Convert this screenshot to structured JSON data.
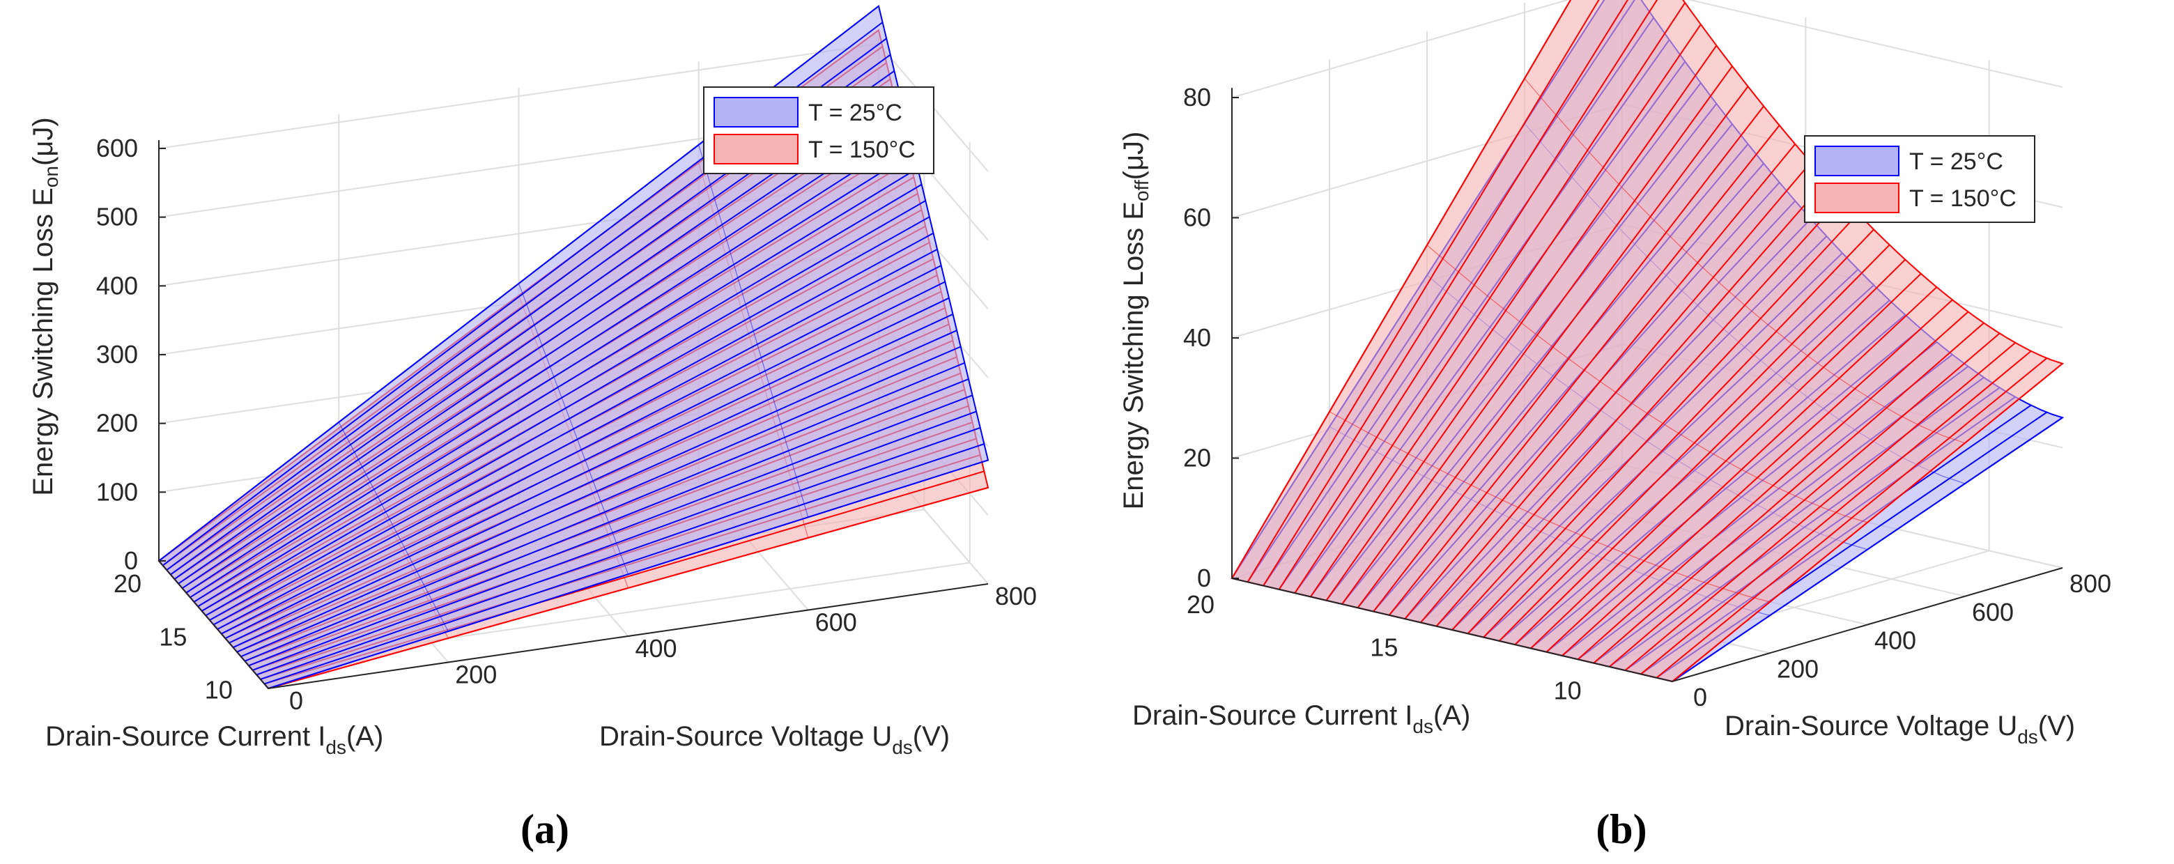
{
  "figure": {
    "panel_a_caption": "(a)",
    "panel_b_caption": "(b)"
  },
  "colors": {
    "blue_edge": "#0000ff",
    "blue_face": "#b3b3f5",
    "red_edge": "#ff0000",
    "red_face": "#f5b3b3",
    "grid": "#dedede",
    "axis": "#262626"
  },
  "chart_data": [
    {
      "type": "surface",
      "panel": "a",
      "title": "",
      "zlabel_main": "Energy Switching Loss E",
      "zlabel_sub": "on",
      "zlabel_unit": "(μJ)",
      "xlabel_main": "Drain-Source Current I",
      "xlabel_sub": "ds",
      "xlabel_unit": "(A)",
      "ylabel_main": "Drain-Source Voltage U",
      "ylabel_sub": "ds",
      "ylabel_unit": "(V)",
      "current_range": [
        8,
        20
      ],
      "voltage_range": [
        0,
        800
      ],
      "zlim": [
        0,
        600
      ],
      "current_ticks": [
        10,
        15,
        20
      ],
      "voltage_ticks": [
        0,
        200,
        400,
        600,
        800
      ],
      "z_ticks": [
        0,
        100,
        200,
        300,
        400,
        500,
        600
      ],
      "legend": [
        "T = 25°C",
        "T = 150°C"
      ],
      "legend_position": "top-right",
      "series": [
        {
          "name": "T = 25°C",
          "color": "blue",
          "peak_value": 655,
          "corner_low_current_high_voltage": 180,
          "grid_lines": 28
        },
        {
          "name": "T = 150°C",
          "color": "red",
          "peak_value": 620,
          "corner_low_current_high_voltage": 140,
          "grid_lines": 28
        }
      ]
    },
    {
      "type": "surface",
      "panel": "b",
      "title": "",
      "zlabel_main": "Energy Switching Loss E",
      "zlabel_sub": "off",
      "zlabel_unit": "(μJ)",
      "xlabel_main": "Drain-Source Current I",
      "xlabel_sub": "ds",
      "xlabel_unit": "(A)",
      "ylabel_main": "Drain-Source Voltage U",
      "ylabel_sub": "ds",
      "ylabel_unit": "(V)",
      "current_range": [
        8,
        20
      ],
      "voltage_range": [
        0,
        800
      ],
      "zlim": [
        0,
        80
      ],
      "current_ticks": [
        10,
        15,
        20
      ],
      "voltage_ticks": [
        0,
        200,
        400,
        600,
        800
      ],
      "z_ticks": [
        0,
        20,
        40,
        60,
        80
      ],
      "legend": [
        "T = 25°C",
        "T = 150°C"
      ],
      "legend_position": "top-right",
      "series": [
        {
          "name": "T = 25°C",
          "color": "blue",
          "peak_value": 82,
          "corner_low_current_high_voltage": 25,
          "grid_lines": 28
        },
        {
          "name": "T = 150°C",
          "color": "red",
          "peak_value": 92,
          "corner_low_current_high_voltage": 34,
          "grid_lines": 28
        }
      ]
    }
  ]
}
